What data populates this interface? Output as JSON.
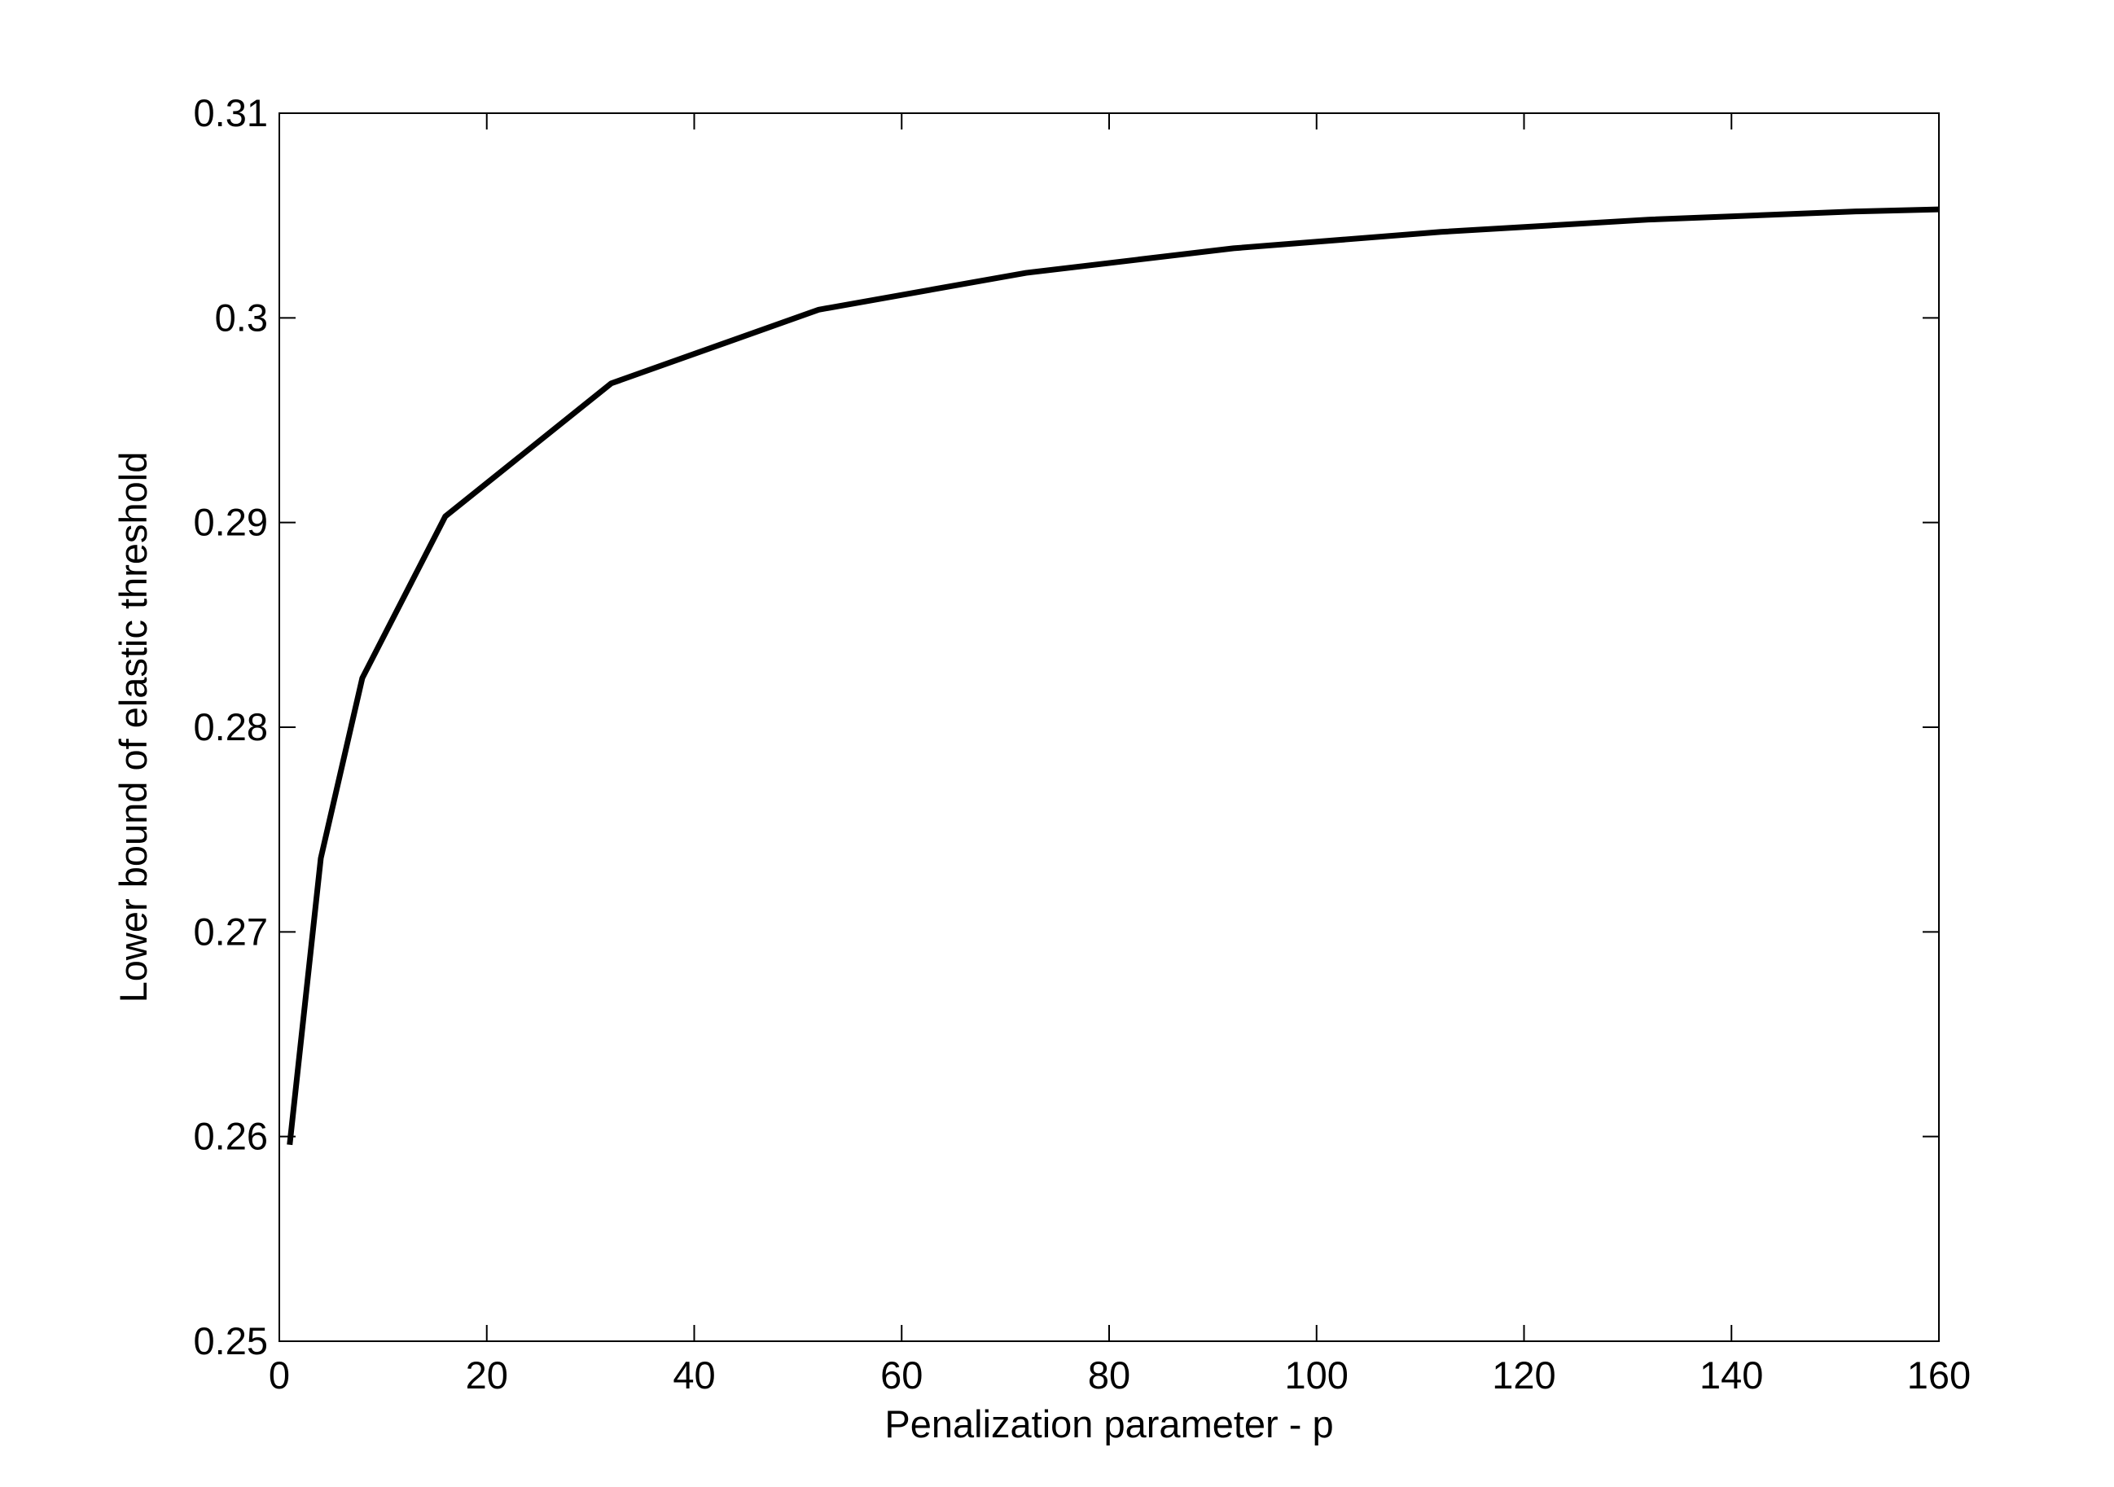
{
  "chart_data": {
    "type": "line",
    "xlabel": "Penalization parameter - p",
    "ylabel": "Lower bound of elastic threshold",
    "x": [
      1,
      4,
      8,
      16,
      32,
      52,
      72,
      92,
      112,
      132,
      152,
      160
    ],
    "series": [
      {
        "color": "#000000",
        "values": [
          0.2596,
          0.2736,
          0.2824,
          0.2903,
          0.2968,
          0.3004,
          0.3022,
          0.3034,
          0.3042,
          0.3048,
          0.3052,
          0.3053
        ]
      }
    ],
    "xlim": [
      0,
      160
    ],
    "xticks": [
      0,
      20,
      40,
      60,
      80,
      100,
      120,
      140,
      160
    ],
    "ylim": [
      0.25,
      0.31
    ],
    "yticks": [
      0.25,
      0.26,
      0.27,
      0.28,
      0.29,
      0.3,
      0.31
    ],
    "grid": false
  }
}
